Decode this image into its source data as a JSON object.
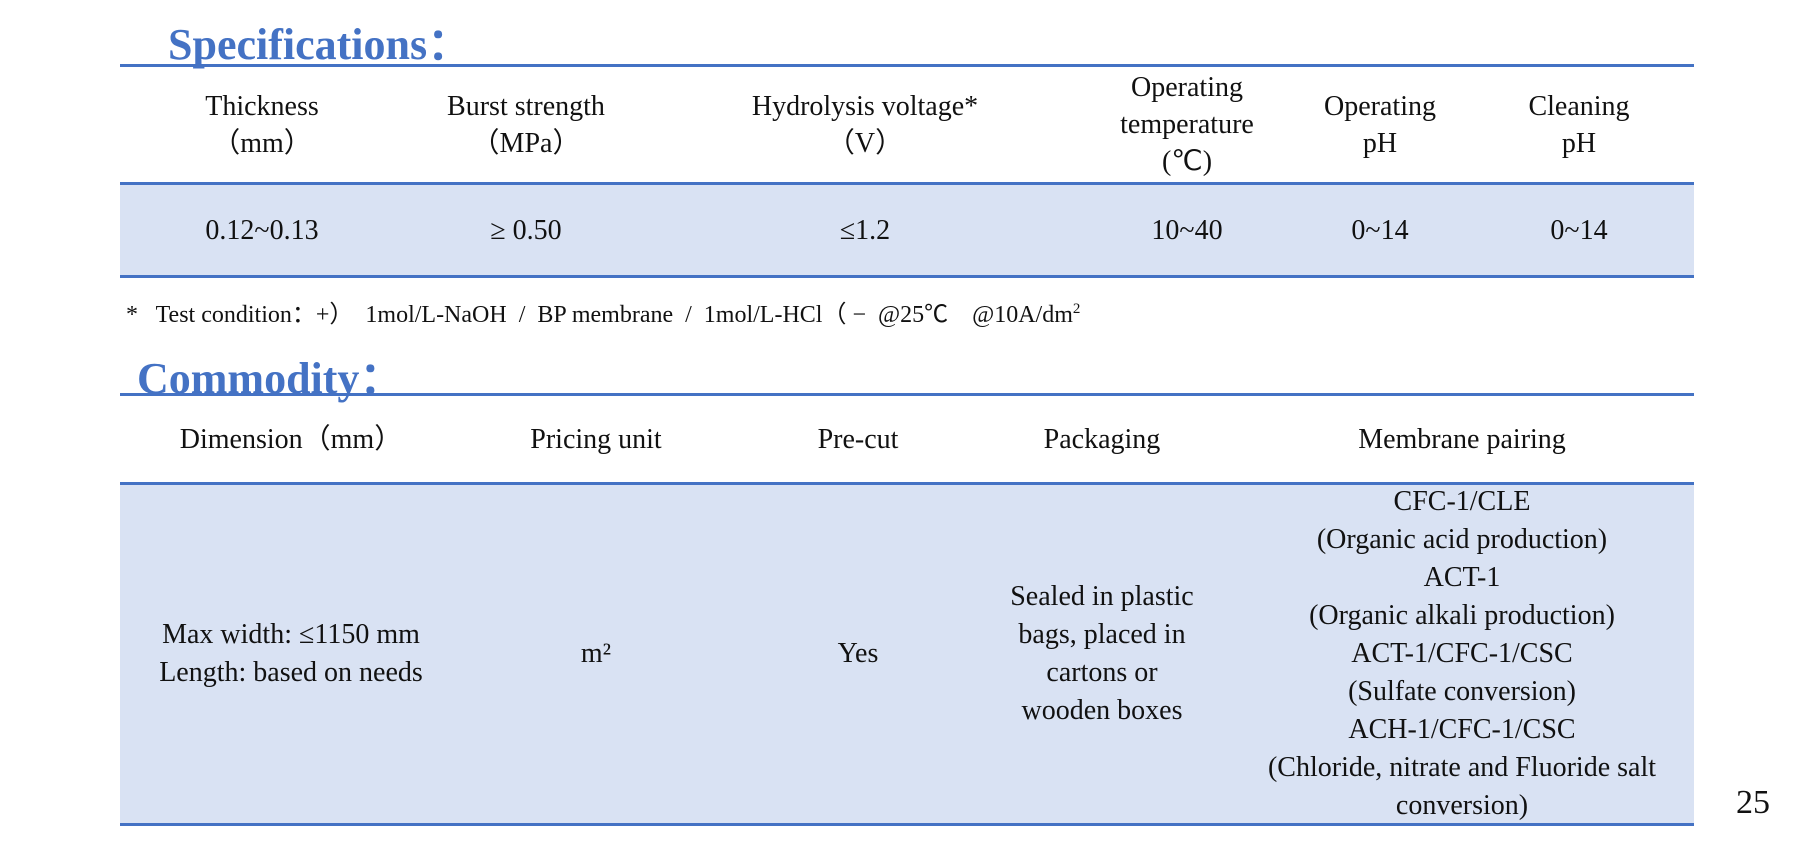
{
  "specifications": {
    "title": "Specifications：",
    "headers": [
      [
        "Thickness",
        "（mm）"
      ],
      [
        "Burst strength",
        "（MPa）"
      ],
      [
        "Hydrolysis voltage*",
        "（V）"
      ],
      [
        "Operating",
        "temperature",
        "(℃)"
      ],
      [
        "Operating",
        "pH"
      ],
      [
        "Cleaning",
        "pH"
      ]
    ],
    "row": [
      [
        "0.12~0.13"
      ],
      [
        "≥ 0.50"
      ],
      [
        "≤1.2"
      ],
      [
        "10~40"
      ],
      [
        "0~14"
      ],
      [
        "0~14"
      ]
    ]
  },
  "footnote": {
    "text": "*   Test condition：+）  1mol/L-NaOH  /  BP membrane  /  1mol/L-HCl（ −  @25℃    @10A/dm",
    "superscript": "2"
  },
  "commodity": {
    "title": "Commodity：",
    "headers": [
      [
        "Dimension（mm）"
      ],
      [
        "Pricing unit"
      ],
      [
        "Pre-cut"
      ],
      [
        "Packaging"
      ],
      [
        "Membrane pairing"
      ]
    ],
    "row": [
      [
        "Max width: ≤1150 mm",
        "Length: based on needs"
      ],
      [
        "m²"
      ],
      [
        "Yes"
      ],
      [
        "Sealed in plastic",
        "bags, placed in",
        "cartons or",
        "wooden boxes"
      ],
      [
        "CFC-1/CLE",
        "(Organic acid production)",
        "ACT-1",
        "(Organic alkali production)",
        "ACT-1/CFC-1/CSC",
        "(Sulfate conversion)",
        "ACH-1/CFC-1/CSC",
        "(Chloride, nitrate and Fluoride salt conversion)"
      ]
    ]
  },
  "page_number": "25"
}
